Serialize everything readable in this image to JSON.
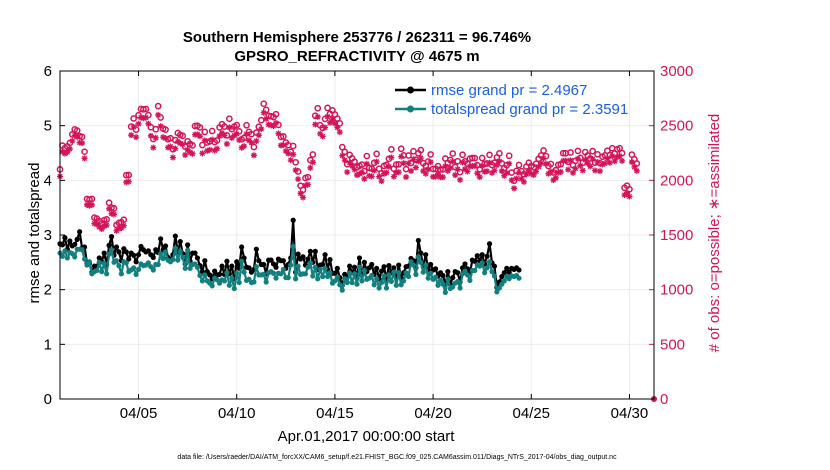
{
  "title_line1": "Southern Hemisphere 253776 / 262311 = 96.746%",
  "title_line2": "GPSRO_REFRACTIVITY @ 4675 m",
  "footer": "data file: /Users/raeder/DAI/ATM_forcXX/CAM6_setup/f.e21.FHIST_BGC.f09_025.CAM6assim.011/Diags_NTrS_2017-04/obs_diag_output.nc",
  "colors": {
    "rmse": "#000000",
    "spread": "#13807f",
    "obs": "#d4145a",
    "legend_text": "#1a5fe0",
    "grid": "#ebebeb"
  },
  "chart_data": {
    "type": "line",
    "xlabel": "Apr.01,2017 00:00:00 start",
    "ylabel": "rmse and totalspread",
    "ylabel_right": "# of obs: o=possible; ∗=assimilated",
    "xlim": [
      1,
      31.25
    ],
    "ylim": [
      0,
      6
    ],
    "ylim_right": [
      0,
      3000
    ],
    "x_ticks": [
      5,
      10,
      15,
      20,
      25,
      30
    ],
    "x_tick_labels": [
      "04/05",
      "04/10",
      "04/15",
      "04/20",
      "04/25",
      "04/30"
    ],
    "y_ticks": [
      "0",
      "1",
      "2",
      "3",
      "4",
      "5",
      "6"
    ],
    "y_ticks_right": [
      "0",
      "500",
      "1000",
      "1500",
      "2000",
      "2500",
      "3000"
    ],
    "grid": true,
    "legend_position": "top-right",
    "x_step_hours": 3,
    "series": [
      {
        "name": "rmse grand pr = 2.4967",
        "axis": "left",
        "marker": "dot",
        "values": [
          2.84,
          2.82,
          2.95,
          2.74,
          2.89,
          2.8,
          2.83,
          2.92,
          3.06,
          2.76,
          2.78,
          2.49,
          2.48,
          2.32,
          2.43,
          2.42,
          2.58,
          2.51,
          2.67,
          2.46,
          2.81,
          2.97,
          2.63,
          2.78,
          2.69,
          2.53,
          2.75,
          2.69,
          2.56,
          2.67,
          2.63,
          2.51,
          2.64,
          2.79,
          2.73,
          2.69,
          2.71,
          2.64,
          2.59,
          2.73,
          2.68,
          2.93,
          2.73,
          2.8,
          2.59,
          2.55,
          2.64,
          2.98,
          2.69,
          2.88,
          2.66,
          2.47,
          2.82,
          2.52,
          2.67,
          2.67,
          2.58,
          2.44,
          2.33,
          2.53,
          2.33,
          2.27,
          2.2,
          2.34,
          2.27,
          2.28,
          2.43,
          2.28,
          2.52,
          2.29,
          2.43,
          2.2,
          2.51,
          2.39,
          2.78,
          2.58,
          2.41,
          2.4,
          2.32,
          2.37,
          2.74,
          2.53,
          2.46,
          2.46,
          2.29,
          2.54,
          2.54,
          2.47,
          2.41,
          2.56,
          2.53,
          2.53,
          2.39,
          2.46,
          2.58,
          3.27,
          2.32,
          2.65,
          2.56,
          2.6,
          2.45,
          2.56,
          2.7,
          2.5,
          2.7,
          2.37,
          2.45,
          2.46,
          2.64,
          2.37,
          2.55,
          2.3,
          2.3,
          2.39,
          2.22,
          2.08,
          2.28,
          2.23,
          2.43,
          2.31,
          2.41,
          2.21,
          2.58,
          2.26,
          2.5,
          2.33,
          2.4,
          2.46,
          2.28,
          2.39,
          2.2,
          2.34,
          2.42,
          2.19,
          2.44,
          2.31,
          2.4,
          2.23,
          2.45,
          2.21,
          2.31,
          2.42,
          2.43,
          2.57,
          2.53,
          2.4,
          2.9,
          2.67,
          2.42,
          2.64,
          2.37,
          2.46,
          2.36,
          2.38,
          2.25,
          2.31,
          2.26,
          2.1,
          2.33,
          2.1,
          2.22,
          2.33,
          2.31,
          2.14,
          2.4,
          2.47,
          2.38,
          2.31,
          2.54,
          2.52,
          2.62,
          2.53,
          2.64,
          2.47,
          2.61,
          2.84,
          2.49,
          2.43,
          2.04,
          2.14,
          2.24,
          2.31,
          2.39,
          2.32,
          2.39,
          2.37,
          2.4,
          2.36
        ]
      },
      {
        "name": "totalspread grand pr = 2.3591",
        "axis": "left",
        "marker": "dot",
        "values": [
          2.67,
          2.61,
          2.71,
          2.58,
          2.68,
          2.66,
          2.6,
          2.74,
          2.74,
          2.73,
          2.56,
          2.45,
          2.51,
          2.29,
          2.33,
          2.35,
          2.5,
          2.33,
          2.48,
          2.29,
          2.65,
          2.73,
          2.5,
          2.53,
          2.44,
          2.29,
          2.51,
          2.49,
          2.33,
          2.36,
          2.4,
          2.28,
          2.37,
          2.47,
          2.44,
          2.45,
          2.49,
          2.42,
          2.36,
          2.46,
          2.46,
          2.66,
          2.57,
          2.69,
          2.54,
          2.51,
          2.55,
          2.76,
          2.54,
          2.7,
          2.59,
          2.39,
          2.72,
          2.39,
          2.46,
          2.47,
          2.41,
          2.26,
          2.16,
          2.27,
          2.16,
          2.12,
          2.07,
          2.21,
          2.18,
          2.12,
          2.18,
          2.16,
          2.31,
          2.08,
          2.21,
          2.02,
          2.3,
          2.13,
          2.52,
          2.32,
          2.17,
          2.19,
          2.13,
          2.14,
          2.42,
          2.27,
          2.27,
          2.28,
          2.14,
          2.31,
          2.33,
          2.3,
          2.21,
          2.3,
          2.29,
          2.37,
          2.22,
          2.22,
          2.45,
          2.79,
          2.2,
          2.43,
          2.28,
          2.29,
          2.29,
          2.41,
          2.49,
          2.25,
          2.41,
          2.2,
          2.37,
          2.24,
          2.39,
          2.24,
          2.31,
          2.12,
          2.16,
          2.23,
          2.09,
          1.99,
          2.2,
          2.13,
          2.3,
          2.13,
          2.29,
          2.1,
          2.41,
          2.16,
          2.35,
          2.19,
          2.21,
          2.26,
          2.09,
          2.2,
          2.03,
          2.13,
          2.25,
          2.03,
          2.27,
          2.15,
          2.32,
          2.08,
          2.31,
          2.09,
          2.16,
          2.31,
          2.24,
          2.51,
          2.45,
          2.28,
          2.6,
          2.5,
          2.32,
          2.45,
          2.21,
          2.3,
          2.19,
          2.23,
          2.08,
          2.17,
          2.1,
          1.95,
          2.19,
          2.02,
          2.05,
          2.12,
          2.15,
          2.03,
          2.29,
          2.34,
          2.27,
          2.17,
          2.35,
          2.35,
          2.45,
          2.43,
          2.49,
          2.31,
          2.4,
          2.51,
          2.33,
          2.25,
          1.96,
          2.03,
          2.1,
          2.16,
          2.24,
          2.2,
          2.25,
          2.24,
          2.26,
          2.21
        ]
      },
      {
        "name": "possible",
        "axis": "right",
        "marker": "open-circle",
        "values": [
          2100,
          2318,
          2296,
          2311,
          2342,
          2420,
          2466,
          2455,
          2405,
          2398,
          2262,
          1830,
          1824,
          1830,
          1659,
          1650,
          1626,
          1606,
          1636,
          1643,
          1795,
          1749,
          1744,
          1591,
          1611,
          1617,
          1640,
          2047,
          2049,
          2491,
          2566,
          2464,
          2595,
          2653,
          2649,
          2653,
          2597,
          2486,
          2378,
          2467,
          2679,
          2575,
          2473,
          2464,
          2376,
          2385,
          2284,
          2368,
          2433,
          2416,
          2407,
          2308,
          2357,
          2333,
          2320,
          2497,
          2499,
          2484,
          2323,
          2443,
          2346,
          2356,
          2451,
          2350,
          2365,
          2484,
          2513,
          2491,
          2411,
          2563,
          2468,
          2491,
          2505,
          2448,
          2375,
          2389,
          2504,
          2443,
          2423,
          2305,
          2437,
          2490,
          2550,
          2701,
          2645,
          2591,
          2586,
          2578,
          2605,
          2507,
          2397,
          2402,
          2346,
          2322,
          2261,
          2314,
          2165,
          2081,
          1950,
          1913,
          2021,
          2029,
          2185,
          2236,
          2591,
          2659,
          2504,
          2480,
          2562,
          2663,
          2608,
          2640,
          2602,
          2565,
          2521,
          2304,
          2260,
          2147,
          2233,
          2202,
          2171,
          2119,
          2132,
          2144,
          2084,
          2222,
          2114,
          2107,
          2161,
          2242,
          2106,
          2065,
          2132,
          2142,
          2197,
          2283,
          2106,
          2144,
          2146,
          2289,
          2229,
          2102,
          2227,
          2158,
          2266,
          2188,
          2247,
          2276,
          2156,
          2133,
          2172,
          2237,
          2104,
          2105,
          2130,
          2099,
          2100,
          2200,
          2160,
          2186,
          2245,
          2122,
          2175,
          2075,
          2234,
          2174,
          2153,
          2199,
          2204,
          2203,
          2138,
          2101,
          2204,
          2151,
          2154,
          2233,
          2140,
          2161,
          2210,
          2247,
          2155,
          2113,
          2138,
          2225,
          2071,
          1996,
          2087,
          2140,
          2083,
          2056,
          2126,
          2161,
          2131,
          2120,
          2152,
          2197,
          2227,
          2273,
          2222,
          2131,
          2150,
          2072,
          2093,
          2142,
          2147,
          2248,
          2248,
          2170,
          2255,
          2139,
          2178,
          2269,
          2206,
          2161,
          2258,
          2227,
          2200,
          2267,
          2162,
          2238,
          2156,
          2216,
          2228,
          2271,
          2232,
          2294,
          2246,
          2283,
          2294,
          2249,
          1932,
          1951,
          1918,
          2235,
          2193,
          2154
        ]
      },
      {
        "name": "assimilated",
        "axis": "right",
        "marker": "asterisk",
        "values": [
          2036,
          2262,
          2245,
          2257,
          2287,
          2360,
          2410,
          2398,
          2345,
          2341,
          2201,
          1776,
          1768,
          1775,
          1605,
          1598,
          1574,
          1554,
          1582,
          1590,
          1740,
          1695,
          1689,
          1539,
          1559,
          1563,
          1586,
          1983,
          1988,
          2413,
          2489,
          2394,
          2517,
          2575,
          2568,
          2573,
          2518,
          2407,
          2299,
          2389,
          2598,
          2495,
          2395,
          2385,
          2300,
          2309,
          2209,
          2290,
          2354,
          2339,
          2329,
          2232,
          2279,
          2255,
          2243,
          2418,
          2420,
          2404,
          2247,
          2364,
          2270,
          2279,
          2372,
          2273,
          2289,
          2405,
          2433,
          2411,
          2333,
          2484,
          2388,
          2410,
          2425,
          2369,
          2298,
          2313,
          2424,
          2365,
          2343,
          2229,
          2359,
          2412,
          2469,
          2618,
          2563,
          2510,
          2504,
          2497,
          2524,
          2428,
          2319,
          2323,
          2268,
          2245,
          2185,
          2237,
          2093,
          2011,
          1880,
          1843,
          1953,
          1961,
          2114,
          2165,
          2511,
          2580,
          2426,
          2402,
          2483,
          2582,
          2527,
          2559,
          2520,
          2483,
          2441,
          2226,
          2184,
          2075,
          2161,
          2131,
          2099,
          2048,
          2059,
          2071,
          2014,
          2150,
          2042,
          2036,
          2090,
          2170,
          2034,
          1993,
          2060,
          2071,
          2125,
          2209,
          2034,
          2071,
          2075,
          2217,
          2157,
          2030,
          2155,
          2086,
          2193,
          2116,
          2174,
          2204,
          2085,
          2060,
          2100,
          2166,
          2032,
          2034,
          2059,
          2029,
          2029,
          2129,
          2087,
          2114,
          2172,
          2048,
          2101,
          2004,
          2164,
          2102,
          2081,
          2127,
          2131,
          2132,
          2065,
          2030,
          2132,
          2079,
          2083,
          2161,
          2068,
          2090,
          2139,
          2175,
          2085,
          2042,
          2067,
          2153,
          2001,
          1927,
          2017,
          2069,
          2014,
          1986,
          2056,
          2090,
          2060,
          2049,
          2082,
          2125,
          2155,
          2201,
          2151,
          2061,
          2079,
          2002,
          2022,
          2071,
          2077,
          2178,
          2178,
          2098,
          2183,
          2068,
          2107,
          2197,
          2134,
          2090,
          2187,
          2157,
          2128,
          2195,
          2090,
          2167,
          2084,
          2145,
          2155,
          2199,
          2161,
          2222,
          2176,
          2211,
          2222,
          2178,
          1866,
          1884,
          1852,
          2167,
          2123,
          2087
        ]
      }
    ]
  }
}
